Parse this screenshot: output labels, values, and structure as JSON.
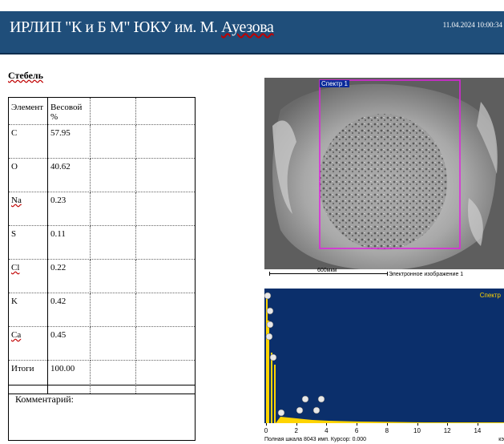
{
  "header": {
    "title_main": "ИРЛИП \"К и Б М\"   ЮКУ им. М. ",
    "title_underlined": "Ауезова",
    "timestamp": "11.04.2024 10:00:34"
  },
  "sample_name": "Стебель",
  "table": {
    "headers": [
      "Элемент",
      "Весовой %"
    ],
    "rows": [
      {
        "element": "C",
        "wavy": false,
        "value": "57.95"
      },
      {
        "element": "O",
        "wavy": false,
        "value": "40.62"
      },
      {
        "element": "Na",
        "wavy": true,
        "value": "0.23"
      },
      {
        "element": "S",
        "wavy": false,
        "value": "0.11"
      },
      {
        "element": "Cl",
        "wavy": true,
        "value": "0.22"
      },
      {
        "element": "K",
        "wavy": false,
        "value": "0.42"
      },
      {
        "element": "Ca",
        "wavy": true,
        "value": "0.45"
      },
      {
        "element": "Итоги",
        "wavy": false,
        "value": "100.00"
      }
    ]
  },
  "comment_label": "Комментарий:",
  "sem": {
    "spectrum_box_label": "Спектр 1",
    "scale_label": "600мкм",
    "caption": "Электронное изображение 1"
  },
  "spectrum": {
    "title": "Спектр",
    "x_ticks": [
      "0",
      "2",
      "4",
      "6",
      "8",
      "10",
      "12",
      "14"
    ],
    "footer": "Полная шкала 8043 имп. Курсор: 0.000",
    "x_unit": "кэ"
  },
  "colors": {
    "header_bg": "#1f4e7a",
    "spectrum_bg": "#0b2f6b",
    "spectrum_fill": "#ffd400",
    "box_outline": "#e020e0"
  }
}
